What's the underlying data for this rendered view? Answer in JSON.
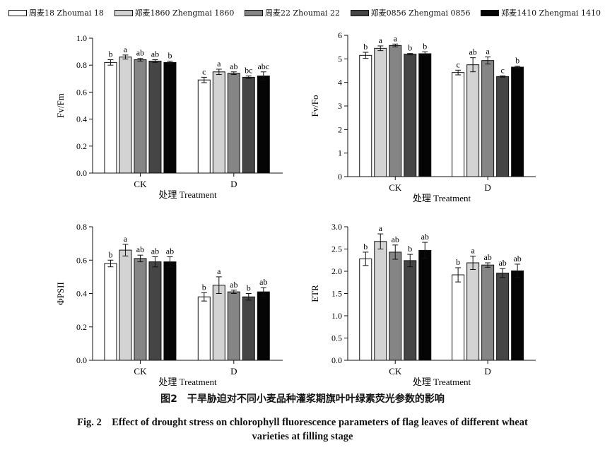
{
  "legend": [
    {
      "label": "周麦18 Zhoumai 18",
      "color": "#ffffff"
    },
    {
      "label": "郑麦1860 Zhengmai 1860",
      "color": "#d3d3d3"
    },
    {
      "label": "周麦22 Zhoumai 22",
      "color": "#858585"
    },
    {
      "label": "郑麦0856 Zhengmai 0856",
      "color": "#454545"
    },
    {
      "label": "郑麦1410 Zhengmai 1410",
      "color": "#050505"
    }
  ],
  "caption": {
    "cn": "图2　干旱胁迫对不同小麦品种灌浆期旗叶叶绿素荧光参数的影响",
    "en_line1": "Fig. 2　Effect of drought stress on chlorophyll fluorescence parameters of  flag leaves of different wheat",
    "en_line2": "varieties at filling stage"
  },
  "chart_data": [
    {
      "type": "bar",
      "ylabel": "Fv/Fm",
      "xlabel": "处理 Treatment",
      "ylim": [
        0,
        1.0
      ],
      "yticks": [
        "0.0",
        "0.2",
        "0.4",
        "0.6",
        "0.8",
        "1.0"
      ],
      "categories": [
        "CK",
        "D"
      ],
      "series": [
        {
          "name": "周麦18 Zhoumai 18",
          "values": [
            0.82,
            0.69
          ],
          "errors": [
            0.02,
            0.02
          ],
          "letters": [
            "b",
            "c"
          ]
        },
        {
          "name": "郑麦1860 Zhengmai 1860",
          "values": [
            0.86,
            0.75
          ],
          "errors": [
            0.015,
            0.02
          ],
          "letters": [
            "a",
            "a"
          ]
        },
        {
          "name": "周麦22 Zhoumai 22",
          "values": [
            0.84,
            0.74
          ],
          "errors": [
            0.01,
            0.01
          ],
          "letters": [
            "ab",
            "ab"
          ]
        },
        {
          "name": "郑麦0856 Zhengmai 0856",
          "values": [
            0.83,
            0.71
          ],
          "errors": [
            0.01,
            0.01
          ],
          "letters": [
            "ab",
            "bc"
          ]
        },
        {
          "name": "郑麦1410 Zhengmai 1410",
          "values": [
            0.82,
            0.72
          ],
          "errors": [
            0.01,
            0.03
          ],
          "letters": [
            "b",
            "abc"
          ]
        }
      ]
    },
    {
      "type": "bar",
      "ylabel": "Fv/Fo",
      "xlabel": "处理 Treatment",
      "ylim": [
        0,
        6
      ],
      "yticks": [
        "0",
        "1",
        "2",
        "3",
        "4",
        "5",
        "6"
      ],
      "categories": [
        "CK",
        "D"
      ],
      "series": [
        {
          "name": "周麦18 Zhoumai 18",
          "values": [
            5.15,
            4.42
          ],
          "errors": [
            0.13,
            0.1
          ],
          "letters": [
            "b",
            "c"
          ]
        },
        {
          "name": "郑麦1860 Zhengmai 1860",
          "values": [
            5.45,
            4.75
          ],
          "errors": [
            0.1,
            0.3
          ],
          "letters": [
            "a",
            "ab"
          ]
        },
        {
          "name": "周麦22 Zhoumai 22",
          "values": [
            5.57,
            4.93
          ],
          "errors": [
            0.06,
            0.15
          ],
          "letters": [
            "a",
            "a"
          ]
        },
        {
          "name": "郑麦0856 Zhengmai 0856",
          "values": [
            5.2,
            4.25
          ],
          "errors": [
            0.03,
            0.03
          ],
          "letters": [
            "b",
            "c"
          ]
        },
        {
          "name": "郑麦1410 Zhengmai 1410",
          "values": [
            5.22,
            4.65
          ],
          "errors": [
            0.08,
            0.04
          ],
          "letters": [
            "b",
            "b"
          ]
        }
      ]
    },
    {
      "type": "bar",
      "ylabel": "ΦPSII",
      "xlabel": "处理 Treatment",
      "ylim": [
        0,
        0.8
      ],
      "yticks": [
        "0.0",
        "0.2",
        "0.4",
        "0.6",
        "0.8"
      ],
      "categories": [
        "CK",
        "D"
      ],
      "series": [
        {
          "name": "周麦18 Zhoumai 18",
          "values": [
            0.58,
            0.38
          ],
          "errors": [
            0.02,
            0.025
          ],
          "letters": [
            "b",
            "b"
          ]
        },
        {
          "name": "郑麦1860 Zhengmai 1860",
          "values": [
            0.66,
            0.45
          ],
          "errors": [
            0.035,
            0.05
          ],
          "letters": [
            "a",
            "a"
          ]
        },
        {
          "name": "周麦22 Zhoumai 22",
          "values": [
            0.61,
            0.41
          ],
          "errors": [
            0.02,
            0.01
          ],
          "letters": [
            "ab",
            "ab"
          ]
        },
        {
          "name": "郑麦0856 Zhengmai 0856",
          "values": [
            0.59,
            0.38
          ],
          "errors": [
            0.03,
            0.02
          ],
          "letters": [
            "ab",
            "b"
          ]
        },
        {
          "name": "郑麦1410 Zhengmai 1410",
          "values": [
            0.59,
            0.41
          ],
          "errors": [
            0.03,
            0.025
          ],
          "letters": [
            "ab",
            "ab"
          ]
        }
      ]
    },
    {
      "type": "bar",
      "ylabel": "ETR",
      "xlabel": "处理 Treatment",
      "ylim": [
        0,
        3.0
      ],
      "yticks": [
        "0.0",
        "0.5",
        "1.0",
        "1.5",
        "2.0",
        "2.5",
        "3.0"
      ],
      "categories": [
        "CK",
        "D"
      ],
      "series": [
        {
          "name": "周麦18 Zhoumai 18",
          "values": [
            2.28,
            1.92
          ],
          "errors": [
            0.15,
            0.16
          ],
          "letters": [
            "b",
            "b"
          ]
        },
        {
          "name": "郑麦1860 Zhengmai 1860",
          "values": [
            2.67,
            2.19
          ],
          "errors": [
            0.17,
            0.15
          ],
          "letters": [
            "a",
            "a"
          ]
        },
        {
          "name": "周麦22 Zhoumai 22",
          "values": [
            2.43,
            2.14
          ],
          "errors": [
            0.16,
            0.05
          ],
          "letters": [
            "ab",
            "ab"
          ]
        },
        {
          "name": "郑麦0856 Zhengmai 0856",
          "values": [
            2.24,
            1.96
          ],
          "errors": [
            0.14,
            0.1
          ],
          "letters": [
            "b",
            "ab"
          ]
        },
        {
          "name": "郑麦1410 Zhengmai 1410",
          "values": [
            2.47,
            2.01
          ],
          "errors": [
            0.18,
            0.15
          ],
          "letters": [
            "ab",
            "ab"
          ]
        }
      ]
    }
  ]
}
